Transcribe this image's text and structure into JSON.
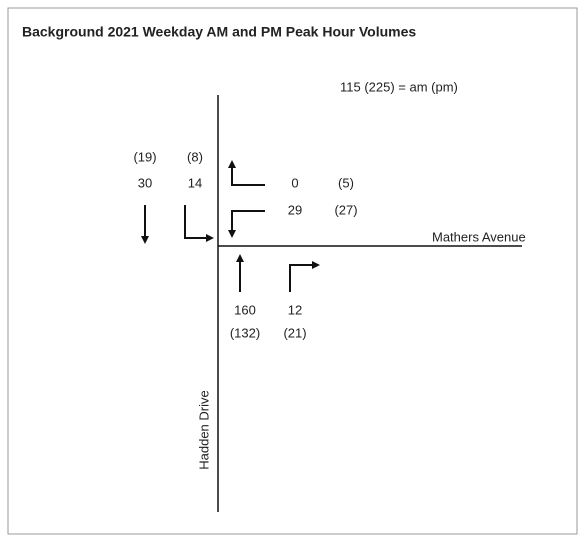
{
  "header": {
    "title": "Background 2021 Weekday AM and PM Peak Hour Volumes"
  },
  "legend": "115 (225) = am (pm)",
  "streets": {
    "east_west": "Mathers Avenue",
    "north_south": "Hadden Drive"
  },
  "movements": [
    {
      "am": "30",
      "pm": "(19)"
    },
    {
      "am": "14",
      "pm": "(8)"
    },
    {
      "am": "0",
      "pm": "(5)"
    },
    {
      "am": "29",
      "pm": "(27)"
    },
    {
      "am": "160",
      "pm": "(132)"
    },
    {
      "am": "12",
      "pm": "(21)"
    }
  ]
}
